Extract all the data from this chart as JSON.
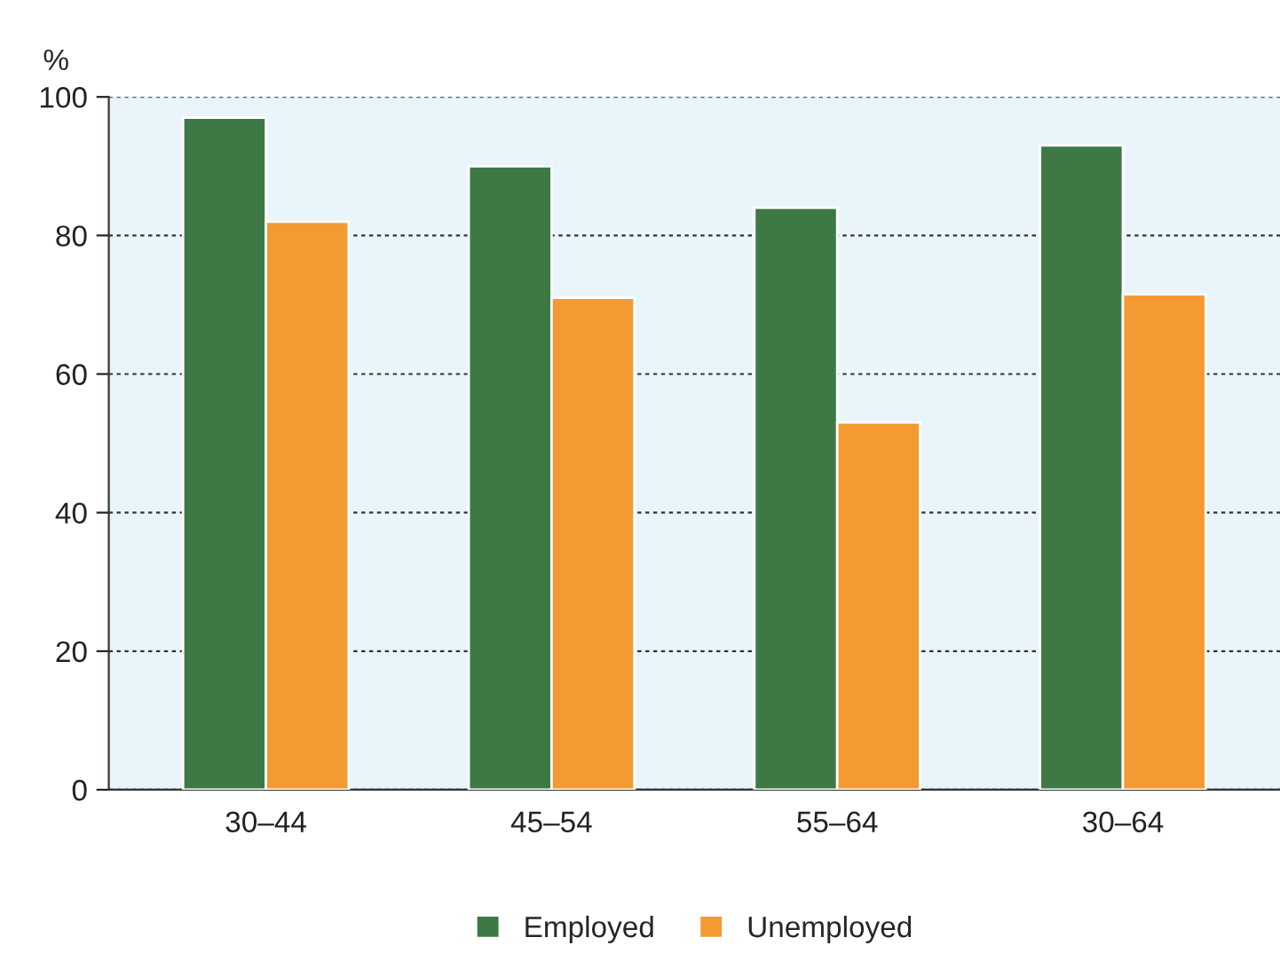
{
  "chart_data": {
    "type": "bar",
    "ylabel": "%",
    "categories": [
      "30–44",
      "45–54",
      "55–64",
      "30–64"
    ],
    "series": [
      {
        "name": "Employed",
        "color": "#3d7845",
        "values": [
          97,
          90,
          84,
          93
        ]
      },
      {
        "name": "Unemployed",
        "color": "#f39a32",
        "values": [
          82,
          71,
          53,
          71.5
        ]
      }
    ],
    "ylim": [
      0,
      100
    ],
    "yticks": [
      0,
      20,
      40,
      60,
      80,
      100
    ],
    "grid": "y",
    "legend": "bottom"
  }
}
